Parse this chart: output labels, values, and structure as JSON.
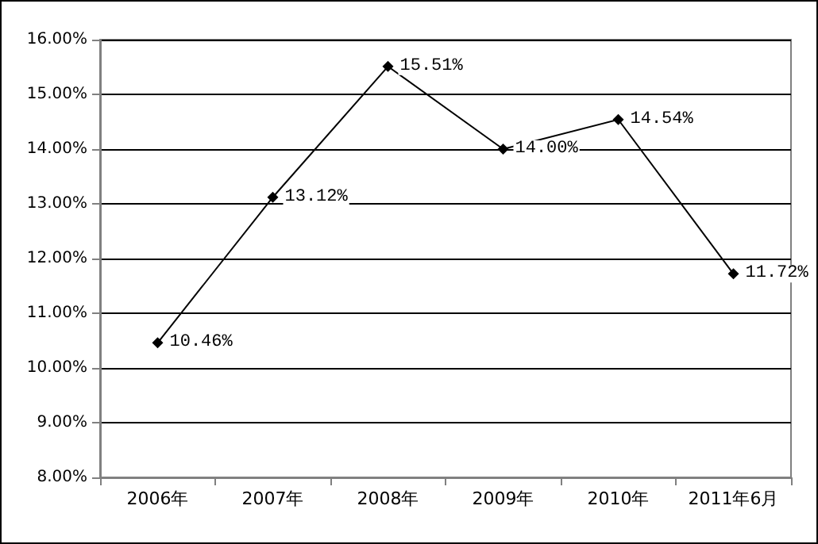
{
  "chart_data": {
    "type": "line",
    "categories": [
      "2006年",
      "2007年",
      "2008年",
      "2009年",
      "2010年",
      "2011年6月"
    ],
    "series": [
      {
        "color": "#000000",
        "values": [
          10.46,
          13.12,
          15.51,
          14.0,
          14.54,
          11.72
        ],
        "value_labels": [
          "10.46%",
          "13.12%",
          "15.51%",
          "14.00%",
          "14.54%",
          "11.72%"
        ]
      }
    ],
    "ylim": [
      8,
      16
    ],
    "yticks": [
      {
        "value": 8,
        "label": "8.00%"
      },
      {
        "value": 9,
        "label": "9.00%"
      },
      {
        "value": 10,
        "label": "10.00%"
      },
      {
        "value": 11,
        "label": "11.00%"
      },
      {
        "value": 12,
        "label": "12.00%"
      },
      {
        "value": 13,
        "label": "13.00%"
      },
      {
        "value": 14,
        "label": "14.00%"
      },
      {
        "value": 15,
        "label": "15.00%"
      },
      {
        "value": 16,
        "label": "16.00%"
      }
    ],
    "grid": "y",
    "marker": "diamond",
    "line_style": "solid"
  }
}
